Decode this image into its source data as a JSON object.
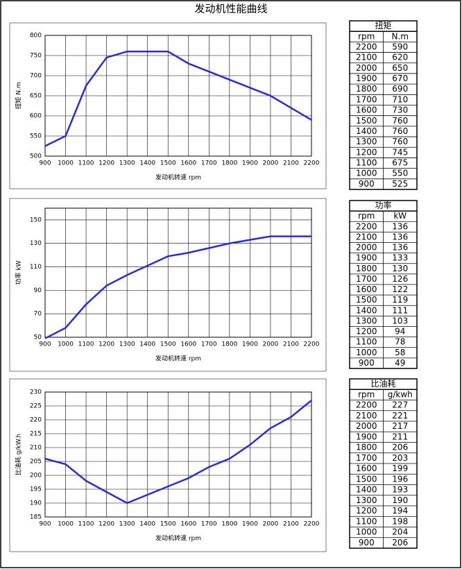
{
  "page_title": "发动机性能曲线",
  "chart_data": [
    {
      "type": "line",
      "table_title": "扭矩",
      "table_headers": [
        "rpm",
        "N.m"
      ],
      "x_label": "发动机转速  rpm",
      "y_label": "扭矩  N.m",
      "x": [
        900,
        1000,
        1100,
        1200,
        1300,
        1400,
        1500,
        1600,
        1700,
        1800,
        1900,
        2000,
        2100,
        2200
      ],
      "values": [
        525,
        550,
        675,
        745,
        760,
        760,
        760,
        730,
        710,
        690,
        670,
        650,
        620,
        590
      ],
      "color": "#2a2ad8",
      "grid": true,
      "xlim": [
        900,
        2200
      ],
      "xticks": [
        900,
        1000,
        1100,
        1200,
        1300,
        1400,
        1500,
        1600,
        1700,
        1800,
        1900,
        2000,
        2100,
        2200
      ],
      "ylim": [
        500,
        800
      ],
      "yticks": [
        500,
        550,
        600,
        650,
        700,
        750,
        800
      ]
    },
    {
      "type": "line",
      "table_title": "功率",
      "table_headers": [
        "rpm",
        "kW"
      ],
      "x_label": "发动机转速  rpm",
      "y_label": "功率  kW",
      "x": [
        900,
        1000,
        1100,
        1200,
        1300,
        1400,
        1500,
        1600,
        1700,
        1800,
        1900,
        2000,
        2100,
        2200
      ],
      "values": [
        49,
        58,
        78,
        94,
        103,
        111,
        119,
        122,
        126,
        130,
        133,
        136,
        136,
        136
      ],
      "color": "#2a2ad8",
      "grid": true,
      "xlim": [
        900,
        2200
      ],
      "xticks": [
        900,
        1000,
        1100,
        1200,
        1300,
        1400,
        1500,
        1600,
        1700,
        1800,
        1900,
        2000,
        2100,
        2200
      ],
      "ylim": [
        50,
        160
      ],
      "yticks": [
        50,
        70,
        90,
        110,
        130,
        150
      ]
    },
    {
      "type": "line",
      "table_title": "比油耗",
      "table_headers": [
        "rpm",
        "g/kwh"
      ],
      "x_label": "发动机转速  rpm",
      "y_label": "比油耗  g/kW.h",
      "x": [
        900,
        1000,
        1100,
        1200,
        1300,
        1400,
        1500,
        1600,
        1700,
        1800,
        1900,
        2000,
        2100,
        2200
      ],
      "values": [
        206,
        204,
        198,
        194,
        190,
        193,
        196,
        199,
        203,
        206,
        211,
        217,
        221,
        227
      ],
      "color": "#2a2ad8",
      "grid": true,
      "xlim": [
        900,
        2200
      ],
      "xticks": [
        900,
        1000,
        1100,
        1200,
        1300,
        1400,
        1500,
        1600,
        1700,
        1800,
        1900,
        2000,
        2100,
        2200
      ],
      "ylim": [
        185,
        230
      ],
      "yticks": [
        185,
        190,
        195,
        200,
        205,
        210,
        215,
        220,
        225,
        230
      ]
    }
  ]
}
